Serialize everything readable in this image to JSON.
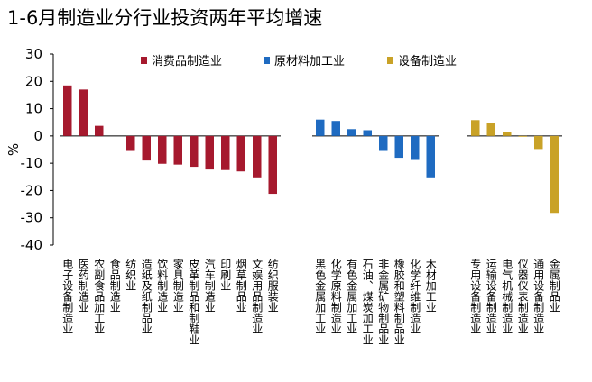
{
  "title": "1-6月制造业分行业投资两年平均增速",
  "chart_data": {
    "type": "bar",
    "title": "1-6月制造业分行业投资两年平均增速",
    "ylabel": "%",
    "xlabel": "",
    "ylim": [
      -40,
      30
    ],
    "yticks": [
      30,
      20,
      10,
      0,
      -10,
      -20,
      -30,
      -40
    ],
    "grid": false,
    "legend_position": "top",
    "series": [
      {
        "name": "消费品制造业",
        "color": "#A6192E",
        "categories": [
          "电子设备制造业",
          "医药制造业",
          "农副食品加工业",
          "食品制造业",
          "纺织业",
          "造纸及纸制品业",
          "饮料制造业",
          "家具制造业",
          "皮革制品和制鞋业",
          "汽车制造业",
          "印刷业",
          "烟草制品业",
          "文娱用品制造业",
          "纺织服装业"
        ],
        "values": [
          18.5,
          17,
          3.7,
          0,
          -5.5,
          -9,
          -10.2,
          -10.5,
          -11.3,
          -12.3,
          -12.5,
          -13,
          -15.5,
          -21.2
        ]
      },
      {
        "name": "原材料加工业",
        "color": "#1F6BC1",
        "categories": [
          "黑色金属加工业",
          "化学原料制造业",
          "有色金属加工业",
          "石油、煤炭加工业",
          "非金属矿物制品业",
          "橡胶和塑料制品业",
          "化学纤维制造业",
          "木材加工业"
        ],
        "values": [
          6,
          5.5,
          2.5,
          2.1,
          -5.5,
          -8,
          -8.8,
          -15.5
        ]
      },
      {
        "name": "设备制造业",
        "color": "#C9A227",
        "categories": [
          "专用设备制造业",
          "运输设备制造业",
          "电气机械制造业",
          "仪器仪表制造业",
          "通用设备制造业",
          "金属制品业"
        ],
        "values": [
          5.8,
          4.8,
          1.3,
          -0.3,
          -4.8,
          -28.2
        ]
      }
    ]
  }
}
